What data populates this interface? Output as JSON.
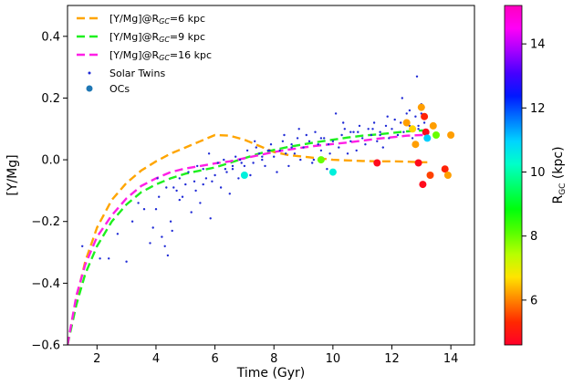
{
  "chart_data": {
    "type": "line",
    "title": "",
    "xlabel": "Time (Gyr)",
    "ylabel": "[Y/Mg]",
    "xlim": [
      1.0,
      14.8
    ],
    "ylim": [
      -0.6,
      0.5
    ],
    "grid": false,
    "legend_position": "top-left",
    "x_ticks": [
      2,
      4,
      6,
      8,
      10,
      12,
      14
    ],
    "x_tick_labels": [
      "2",
      "4",
      "6",
      "8",
      "10",
      "12",
      "14"
    ],
    "y_ticks": [
      -0.6,
      -0.4,
      -0.2,
      0.0,
      0.2,
      0.4
    ],
    "y_tick_labels": [
      "−0.6",
      "−0.4",
      "−0.2",
      "0.0",
      "0.2",
      "0.4"
    ],
    "series": [
      {
        "name": "[Y/Mg]@R",
        "name_sub": "GC",
        "name_suffix": "=6 kpc",
        "style": "dashed",
        "color": "#ffa500",
        "x": [
          1.0,
          1.3,
          1.6,
          2.0,
          2.5,
          3.0,
          3.5,
          4.0,
          4.5,
          5.0,
          5.5,
          6.0,
          6.5,
          7.0,
          7.5,
          8.0,
          8.5,
          9.0,
          9.5,
          10.0,
          10.5,
          11.0,
          11.5,
          12.0,
          12.5,
          13.0,
          13.2
        ],
        "values": [
          -0.6,
          -0.45,
          -0.33,
          -0.22,
          -0.13,
          -0.075,
          -0.035,
          -0.005,
          0.02,
          0.04,
          0.06,
          0.08,
          0.078,
          0.065,
          0.045,
          0.025,
          0.015,
          0.01,
          0.005,
          0.0,
          -0.002,
          -0.004,
          -0.005,
          -0.005,
          -0.006,
          -0.008,
          -0.008
        ]
      },
      {
        "name": "[Y/Mg]@R",
        "name_sub": "GC",
        "name_suffix": "=9 kpc",
        "style": "dashed",
        "color": "#1ef01e",
        "x": [
          1.0,
          1.3,
          1.6,
          2.0,
          2.5,
          3.0,
          3.5,
          4.0,
          4.5,
          5.0,
          5.5,
          6.0,
          6.5,
          7.0,
          7.5,
          8.0,
          8.5,
          9.0,
          9.5,
          10.0,
          10.5,
          11.0,
          11.5,
          12.0,
          12.5,
          13.0,
          13.2
        ],
        "values": [
          -0.6,
          -0.47,
          -0.37,
          -0.28,
          -0.2,
          -0.145,
          -0.105,
          -0.08,
          -0.06,
          -0.045,
          -0.035,
          -0.025,
          -0.01,
          0.005,
          0.02,
          0.032,
          0.042,
          0.05,
          0.058,
          0.065,
          0.072,
          0.078,
          0.082,
          0.087,
          0.092,
          0.095,
          0.095
        ]
      },
      {
        "name": "[Y/Mg]@R",
        "name_sub": "GC",
        "name_suffix": "=16 kpc",
        "style": "dashed",
        "color": "#ff1fe6",
        "x": [
          1.0,
          1.3,
          1.6,
          2.0,
          2.5,
          3.0,
          3.5,
          4.0,
          4.5,
          5.0,
          5.5,
          6.0,
          6.5,
          7.0,
          7.5,
          8.0,
          8.5,
          9.0,
          9.5,
          10.0,
          10.5,
          11.0,
          11.5,
          12.0,
          12.5,
          13.0,
          13.2
        ],
        "values": [
          -0.6,
          -0.44,
          -0.34,
          -0.25,
          -0.18,
          -0.125,
          -0.085,
          -0.06,
          -0.04,
          -0.028,
          -0.02,
          -0.012,
          -0.005,
          0.005,
          0.015,
          0.025,
          0.033,
          0.04,
          0.046,
          0.051,
          0.056,
          0.062,
          0.068,
          0.073,
          0.078,
          0.08,
          0.08
        ]
      }
    ],
    "solar_twins": {
      "name": "Solar Twins",
      "color": "#1f2ad6",
      "x": [
        1.5,
        2.1,
        2.4,
        2.7,
        3.0,
        3.2,
        3.4,
        3.6,
        3.8,
        3.9,
        4.0,
        4.1,
        4.2,
        4.3,
        4.4,
        4.5,
        4.6,
        4.7,
        4.8,
        4.9,
        5.0,
        5.1,
        5.2,
        5.3,
        5.4,
        5.5,
        5.6,
        5.7,
        5.8,
        5.9,
        6.0,
        6.1,
        6.2,
        6.3,
        6.4,
        6.5,
        6.6,
        6.7,
        6.8,
        6.9,
        7.0,
        7.1,
        7.2,
        7.3,
        7.4,
        7.5,
        7.6,
        7.7,
        7.8,
        7.9,
        8.0,
        8.1,
        8.2,
        8.3,
        8.4,
        8.5,
        8.6,
        8.7,
        8.8,
        8.9,
        9.0,
        9.1,
        9.2,
        9.3,
        9.4,
        9.5,
        9.6,
        9.7,
        9.8,
        9.9,
        10.0,
        10.1,
        10.2,
        10.3,
        10.4,
        10.5,
        10.6,
        10.7,
        10.8,
        10.9,
        11.0,
        11.1,
        11.2,
        11.3,
        11.4,
        11.5,
        11.6,
        11.7,
        11.8,
        11.9,
        12.0,
        12.1,
        12.2,
        12.3,
        12.4,
        12.5,
        12.6,
        12.7,
        12.8,
        12.9,
        13.0,
        13.1,
        4.05,
        4.35,
        4.8,
        5.35,
        5.85,
        6.35,
        6.85,
        7.35,
        7.85,
        8.35,
        8.85,
        9.35,
        9.85,
        10.35,
        10.85,
        11.35,
        11.85,
        12.35,
        12.85,
        4.55,
        5.6,
        6.6,
        7.6,
        8.6,
        9.6,
        10.6,
        11.6,
        12.6,
        12.9,
        13.0
      ],
      "values": [
        -0.28,
        -0.32,
        -0.32,
        -0.24,
        -0.33,
        -0.2,
        -0.14,
        -0.16,
        -0.27,
        -0.22,
        -0.16,
        -0.12,
        -0.25,
        -0.28,
        -0.31,
        -0.2,
        -0.09,
        -0.1,
        -0.06,
        -0.12,
        -0.08,
        -0.04,
        -0.17,
        -0.07,
        -0.02,
        -0.14,
        -0.03,
        -0.06,
        0.02,
        -0.07,
        -0.05,
        -0.01,
        -0.09,
        0.0,
        -0.04,
        -0.11,
        -0.03,
        0.01,
        -0.06,
        -0.01,
        -0.02,
        0.03,
        -0.05,
        -0.01,
        0.04,
        0.02,
        0.0,
        -0.02,
        0.03,
        0.05,
        0.01,
        -0.04,
        0.03,
        0.06,
        0.02,
        -0.02,
        0.05,
        0.02,
        0.07,
        0.0,
        0.04,
        0.08,
        0.06,
        -0.01,
        0.09,
        0.05,
        0.03,
        0.07,
        -0.03,
        0.02,
        0.06,
        0.15,
        0.04,
        0.08,
        0.1,
        0.02,
        0.06,
        0.09,
        0.03,
        0.11,
        0.07,
        0.05,
        0.1,
        0.08,
        0.12,
        0.06,
        0.09,
        0.04,
        0.11,
        0.07,
        0.1,
        0.13,
        0.08,
        0.12,
        0.09,
        0.15,
        0.11,
        0.07,
        0.14,
        0.1,
        0.18,
        0.12,
        -0.06,
        -0.09,
        -0.13,
        -0.1,
        -0.19,
        -0.03,
        0.0,
        0.06,
        0.03,
        0.08,
        0.1,
        0.0,
        0.05,
        0.12,
        0.09,
        0.1,
        0.14,
        0.2,
        0.27,
        -0.23,
        -0.08,
        -0.02,
        0.01,
        0.04,
        0.07,
        0.09,
        0.08,
        0.16,
        0.11,
        0.15
      ]
    },
    "open_clusters": {
      "name": "OCs",
      "legend_color": "#1f77b4",
      "x": [
        7.0,
        9.6,
        10.0,
        11.5,
        12.5,
        12.7,
        12.8,
        12.9,
        13.0,
        13.05,
        13.1,
        13.15,
        13.2,
        13.3,
        13.4,
        13.5,
        13.8,
        13.9,
        14.0
      ],
      "values": [
        -0.05,
        0.0,
        -0.04,
        -0.01,
        0.12,
        0.1,
        0.05,
        -0.01,
        0.17,
        -0.08,
        0.14,
        0.09,
        0.07,
        -0.05,
        0.11,
        0.08,
        -0.03,
        -0.05,
        0.08
      ],
      "rgc": [
        10.5,
        8.0,
        10.5,
        4.8,
        6.2,
        6.6,
        6.2,
        4.8,
        6.2,
        4.8,
        5.2,
        4.8,
        11.0,
        5.5,
        6.2,
        8.0,
        5.2,
        6.2,
        6.2
      ]
    },
    "colorbar": {
      "label": "R",
      "label_sub": "GC",
      "label_suffix": " (kpc)",
      "min": 4.6,
      "max": 15.2,
      "ticks": [
        6,
        8,
        10,
        12,
        14
      ],
      "tick_labels": [
        "6",
        "8",
        "10",
        "12",
        "14"
      ],
      "colormap": "gist_rainbow",
      "colors": [
        "#ff0029",
        "#ff2800",
        "#ff8500",
        "#ffe400",
        "#b8ff00",
        "#55ff00",
        "#00ff0c",
        "#00ff6b",
        "#00ffc9",
        "#00d4ff",
        "#0076ff",
        "#0018ff",
        "#4600ff",
        "#a600ff",
        "#ff00f7",
        "#ff00bf"
      ]
    }
  }
}
